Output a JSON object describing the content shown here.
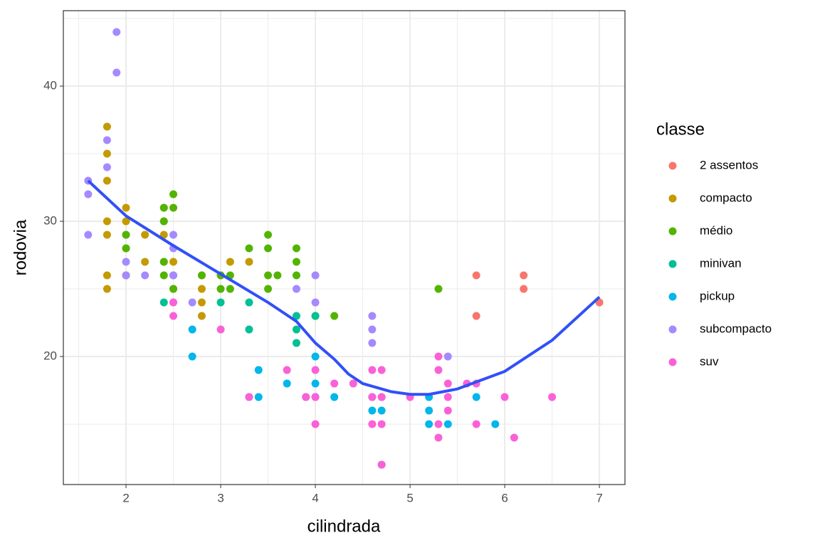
{
  "chart_data": {
    "type": "scatter",
    "x_label": "cilindrada",
    "y_label": "rodovia",
    "legend_title": "classe",
    "legend": "right",
    "grid": true,
    "xlim": [
      1.338,
      7.27
    ],
    "ylim": [
      10.53,
      45.58
    ],
    "xticks": [
      2,
      3,
      4,
      5,
      6,
      7
    ],
    "yticks": [
      20,
      30,
      40
    ],
    "series": [
      {
        "name": "2 assentos",
        "color": "#F8766D",
        "x": [
          5.7,
          5.7,
          6.2,
          6.2,
          7.0
        ],
        "y": [
          26,
          23,
          26,
          25,
          24
        ]
      },
      {
        "name": "compacto",
        "color": "#C49A00",
        "x": [
          1.8,
          1.8,
          1.8,
          1.8,
          1.8,
          1.8,
          1.8,
          2.0,
          2.0,
          2.0,
          2.0,
          2.0,
          2.2,
          2.2,
          2.4,
          2.4,
          2.4,
          2.4,
          2.5,
          2.5,
          2.8,
          2.8,
          2.8,
          2.8,
          3.0,
          3.1,
          3.3
        ],
        "y": [
          37,
          35,
          33,
          30,
          29,
          26,
          25,
          31,
          30,
          29,
          28,
          26,
          29,
          27,
          31,
          30,
          29,
          27,
          27,
          25,
          26,
          25,
          24,
          23,
          26,
          27,
          27
        ]
      },
      {
        "name": "médio",
        "color": "#53B400",
        "x": [
          2.0,
          2.0,
          2.0,
          2.4,
          2.4,
          2.4,
          2.4,
          2.5,
          2.5,
          2.5,
          2.5,
          2.8,
          3.0,
          3.0,
          3.1,
          3.1,
          3.3,
          3.5,
          3.5,
          3.5,
          3.5,
          3.6,
          3.8,
          3.8,
          3.8,
          4.0,
          4.2,
          5.3
        ],
        "y": [
          29,
          28,
          26,
          31,
          30,
          26,
          27,
          32,
          31,
          26,
          25,
          26,
          26,
          25,
          26,
          25,
          28,
          29,
          28,
          26,
          25,
          26,
          28,
          27,
          26,
          23,
          23,
          25
        ]
      },
      {
        "name": "minivan",
        "color": "#00C094",
        "x": [
          2.4,
          3.0,
          3.3,
          3.3,
          3.3,
          3.8,
          3.8,
          3.8,
          4.0
        ],
        "y": [
          24,
          24,
          24,
          22,
          17,
          23,
          22,
          21,
          23
        ]
      },
      {
        "name": "pickup",
        "color": "#00B6EB",
        "x": [
          2.7,
          2.7,
          3.4,
          3.4,
          3.7,
          3.9,
          4.0,
          4.0,
          4.0,
          4.2,
          4.6,
          4.6,
          4.7,
          4.7,
          4.7,
          5.2,
          5.2,
          5.2,
          5.4,
          5.7,
          5.9
        ],
        "y": [
          22,
          20,
          19,
          17,
          18,
          17,
          20,
          18,
          17,
          17,
          17,
          16,
          17,
          16,
          12,
          17,
          16,
          15,
          15,
          17,
          15
        ]
      },
      {
        "name": "subcompacto",
        "color": "#A58AFF",
        "x": [
          1.6,
          1.6,
          1.6,
          1.8,
          1.8,
          1.9,
          1.9,
          2.0,
          2.0,
          2.2,
          2.5,
          2.5,
          2.5,
          2.5,
          2.7,
          3.8,
          4.0,
          4.0,
          4.6,
          4.6,
          4.6,
          5.4
        ],
        "y": [
          33,
          32,
          29,
          36,
          34,
          44,
          41,
          27,
          26,
          26,
          29,
          28,
          26,
          24,
          24,
          25,
          26,
          24,
          23,
          22,
          21,
          20
        ]
      },
      {
        "name": "suv",
        "color": "#FB61D7",
        "x": [
          2.5,
          2.5,
          3.0,
          3.3,
          3.7,
          3.9,
          4.0,
          4.0,
          4.0,
          4.2,
          4.4,
          4.6,
          4.6,
          4.6,
          4.7,
          4.7,
          4.7,
          4.7,
          5.0,
          5.3,
          5.3,
          5.3,
          5.3,
          5.4,
          5.4,
          5.4,
          5.6,
          5.7,
          5.7,
          6.0,
          6.1,
          6.5
        ],
        "y": [
          24,
          23,
          22,
          17,
          19,
          17,
          19,
          17,
          15,
          18,
          18,
          19,
          17,
          15,
          19,
          17,
          15,
          12,
          17,
          20,
          19,
          15,
          14,
          18,
          17,
          16,
          18,
          18,
          15,
          17,
          14,
          17
        ]
      }
    ],
    "smooth": {
      "color": "#3050F8",
      "x": [
        1.6,
        2.0,
        2.5,
        3.0,
        3.5,
        3.8,
        4.0,
        4.2,
        4.35,
        4.5,
        4.8,
        5.0,
        5.2,
        5.5,
        6.0,
        6.5,
        7.0
      ],
      "y": [
        33,
        30.4,
        28.2,
        26.1,
        24.0,
        22.6,
        21.0,
        19.8,
        18.7,
        18.0,
        17.4,
        17.2,
        17.2,
        17.6,
        18.9,
        21.2,
        24.4
      ]
    }
  }
}
